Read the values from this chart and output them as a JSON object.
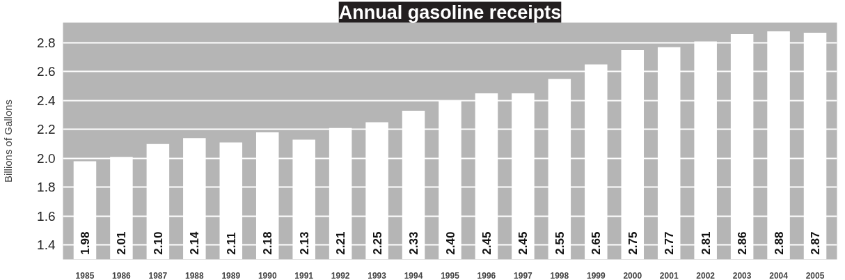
{
  "chart_data": {
    "type": "bar",
    "title": "Annual gasoline receipts",
    "ylabel": "Billions of Gallons",
    "categories": [
      "1985",
      "1986",
      "1987",
      "1988",
      "1989",
      "1990",
      "1991",
      "1992",
      "1993",
      "1994",
      "1995",
      "1996",
      "1997",
      "1998",
      "1999",
      "2000",
      "2001",
      "2002",
      "2003",
      "2004",
      "2005"
    ],
    "values": [
      1.98,
      2.01,
      2.1,
      2.14,
      2.11,
      2.18,
      2.13,
      2.21,
      2.25,
      2.33,
      2.4,
      2.45,
      2.45,
      2.55,
      2.65,
      2.75,
      2.77,
      2.81,
      2.86,
      2.88,
      2.87
    ],
    "value_labels": [
      "1.98",
      "2.01",
      "2.10",
      "2.14",
      "2.11",
      "2.18",
      "2.13",
      "2.21",
      "2.25",
      "2.33",
      "2.40",
      "2.45",
      "2.45",
      "2.55",
      "2.65",
      "2.75",
      "2.77",
      "2.81",
      "2.86",
      "2.88",
      "2.87"
    ],
    "color": "#ffffff",
    "ylim": [
      1.3,
      2.94
    ],
    "yticks": [
      {
        "value": 1.4,
        "label": "1.4"
      },
      {
        "value": 1.6,
        "label": "1.6"
      },
      {
        "value": 1.8,
        "label": "1.8"
      },
      {
        "value": 2.0,
        "label": "2.0"
      },
      {
        "value": 2.2,
        "label": "2.2"
      },
      {
        "value": 2.4,
        "label": "2.4"
      },
      {
        "value": 2.6,
        "label": "2.6"
      },
      {
        "value": 2.8,
        "label": "2.8"
      }
    ],
    "grid": "y"
  }
}
